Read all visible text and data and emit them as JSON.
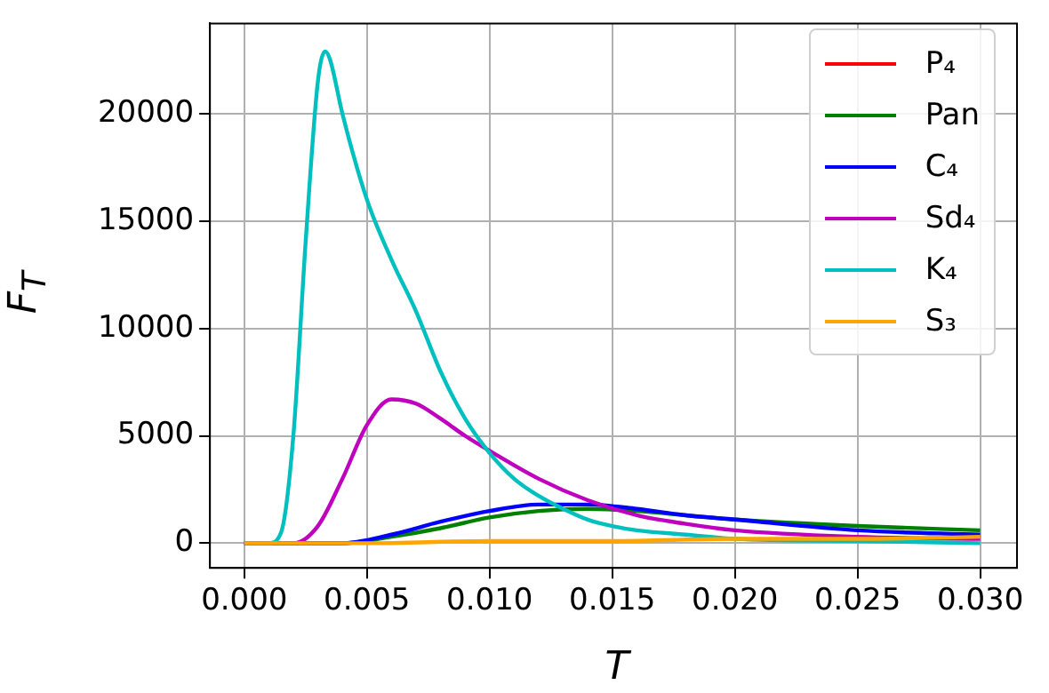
{
  "chart_data": {
    "type": "line",
    "xlabel": "T",
    "ylabel": "F$_{T}$",
    "xlim": [
      -0.0014,
      0.0315
    ],
    "ylim": [
      -1150,
      24200
    ],
    "xticks": [
      {
        "value": 0,
        "label": "0.000"
      },
      {
        "value": 0.005,
        "label": "0.005"
      },
      {
        "value": 0.01,
        "label": "0.010"
      },
      {
        "value": 0.015,
        "label": "0.015"
      },
      {
        "value": 0.02,
        "label": "0.020"
      },
      {
        "value": 0.025,
        "label": "0.025"
      },
      {
        "value": 0.03,
        "label": "0.030"
      }
    ],
    "yticks": [
      0,
      5000,
      10000,
      15000,
      20000
    ],
    "grid": true,
    "legend": "top right",
    "marker": "none",
    "line_style": "solid",
    "series": [
      {
        "name": "P₄",
        "color": "#ff0000"
      },
      {
        "name": "Pan",
        "color": "#008000",
        "x": [
          0,
          0.004,
          0.006,
          0.008,
          0.01,
          0.012,
          0.014,
          0.016,
          0.018,
          0.02,
          0.025,
          0.03
        ],
        "values": [
          0,
          0,
          300,
          700,
          1200,
          1500,
          1600,
          1500,
          1300,
          1100,
          800,
          600
        ]
      },
      {
        "name": "C₄",
        "color": "#0000ff",
        "x": [
          0,
          0.004,
          0.006,
          0.008,
          0.01,
          0.012,
          0.014,
          0.016,
          0.018,
          0.02,
          0.025,
          0.03
        ],
        "values": [
          0,
          0,
          400,
          1000,
          1500,
          1800,
          1800,
          1600,
          1300,
          1100,
          600,
          400
        ]
      },
      {
        "name": "Sd₄",
        "color": "#bf00bf",
        "x": [
          0,
          0.002,
          0.003,
          0.004,
          0.005,
          0.006,
          0.007,
          0.008,
          0.009,
          0.01,
          0.012,
          0.014,
          0.016,
          0.018,
          0.02,
          0.025,
          0.03
        ],
        "values": [
          0,
          0,
          800,
          3000,
          5500,
          6700,
          6500,
          5800,
          5000,
          4300,
          3000,
          2000,
          1300,
          900,
          600,
          300,
          200
        ]
      },
      {
        "name": "K₄",
        "color": "#00bfbf",
        "x": [
          0,
          0.001,
          0.0015,
          0.002,
          0.0025,
          0.003,
          0.0033,
          0.0035,
          0.004,
          0.005,
          0.006,
          0.007,
          0.008,
          0.009,
          0.01,
          0.011,
          0.012,
          0.013,
          0.014,
          0.015,
          0.016,
          0.018,
          0.02,
          0.025,
          0.03
        ],
        "values": [
          0,
          0,
          500,
          5000,
          14000,
          21500,
          22900,
          22500,
          20000,
          16000,
          13200,
          10800,
          8000,
          5800,
          4200,
          3000,
          2200,
          1600,
          1100,
          800,
          600,
          400,
          200,
          100,
          0
        ]
      },
      {
        "name": "S₃",
        "color": "#ffa500",
        "x": [
          0,
          0.005,
          0.01,
          0.015,
          0.02,
          0.025,
          0.03
        ],
        "values": [
          0,
          0,
          100,
          100,
          200,
          200,
          300
        ]
      }
    ]
  }
}
